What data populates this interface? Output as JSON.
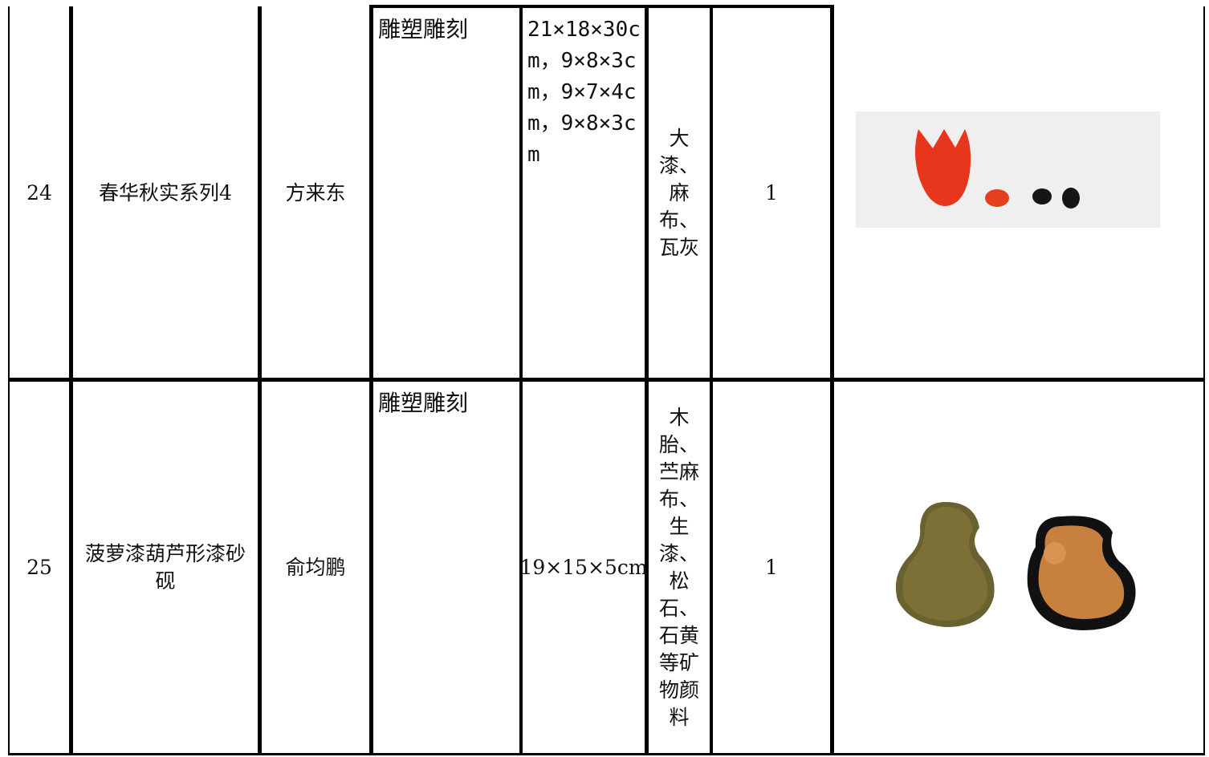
{
  "table": {
    "rows": [
      [
        "24",
        "春华秋实系列4",
        "方来东",
        "雕塑雕刻",
        "21×18×30cm，9×8×3cm，9×7×4cm，9×8×3cm",
        "大漆、麻布、瓦灰",
        "1"
      ],
      [
        "25",
        "菠萝漆葫芦形漆砂砚",
        "俞均鹏",
        "雕塑雕刻",
        "19×15×5cm",
        "木胎、苎麻布、生漆、松石、石黄等矿物颜料",
        "1"
      ]
    ]
  }
}
